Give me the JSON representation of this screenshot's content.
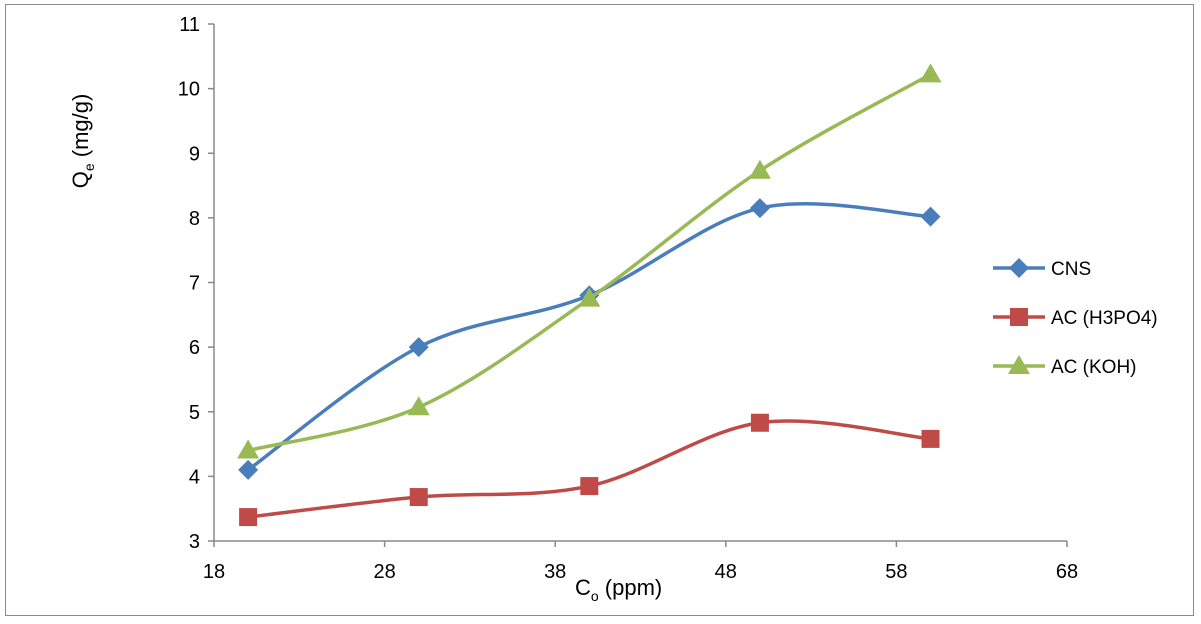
{
  "chart_data": {
    "type": "line",
    "smooth": true,
    "xlabel": {
      "main": "C",
      "sub": "o",
      "unit": " (ppm)"
    },
    "ylabel": {
      "main": "Q",
      "sub": "e",
      "unit": " (mg/g)"
    },
    "xlim": [
      18,
      68
    ],
    "ylim": [
      3,
      11
    ],
    "xticks": [
      "18",
      "28",
      "38",
      "48",
      "58",
      "68"
    ],
    "yticks": [
      "3",
      "4",
      "5",
      "6",
      "7",
      "8",
      "9",
      "10",
      "11"
    ],
    "grid": false,
    "legend_position": "right",
    "x": [
      20,
      30,
      40,
      50,
      60
    ],
    "series": [
      {
        "name": "CNS",
        "color": "#4a7ebb",
        "marker": "diamond",
        "values": [
          4.1,
          6.0,
          6.8,
          8.15,
          8.02
        ]
      },
      {
        "name": "AC (H3PO4)",
        "color": "#be4b48",
        "marker": "square",
        "values": [
          3.37,
          3.68,
          3.85,
          4.83,
          4.58
        ]
      },
      {
        "name": "AC (KOH)",
        "color": "#98b954",
        "marker": "triangle",
        "values": [
          4.4,
          5.07,
          6.75,
          8.73,
          10.22
        ]
      }
    ]
  }
}
